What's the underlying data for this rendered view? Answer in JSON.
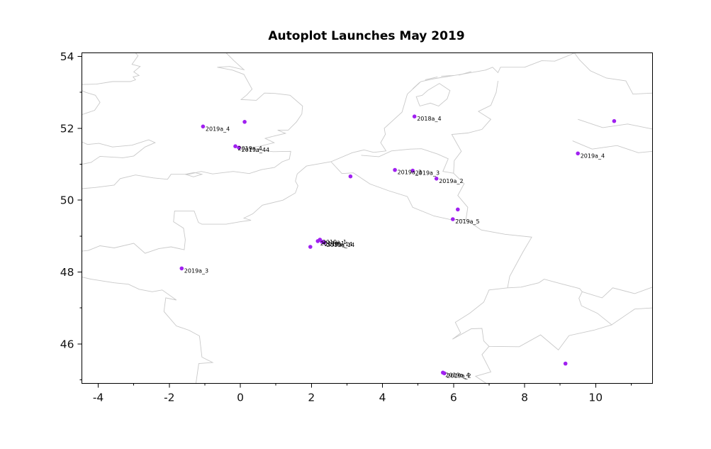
{
  "chart_data": {
    "type": "scatter",
    "title": "Autoplot Launches May 2019",
    "xlabel": "",
    "ylabel": "",
    "xlim": [
      -4.46,
      11.6
    ],
    "ylim": [
      44.9,
      54.1
    ],
    "xticks": [
      -4,
      -2,
      0,
      2,
      4,
      6,
      8,
      10
    ],
    "yticks": [
      46,
      48,
      50,
      52,
      54
    ],
    "xminor": [
      -3,
      -1,
      1,
      3,
      5,
      7,
      9,
      11
    ],
    "yminor": [
      45,
      47,
      49,
      51,
      53
    ],
    "grid": false,
    "legend": false,
    "marker_color": "#a020f0",
    "map_line_color": "#c9c9c9",
    "axis_color": "#000000",
    "points": [
      {
        "x": -1.05,
        "y": 52.05,
        "label": "2019a_4"
      },
      {
        "x": 0.12,
        "y": 52.18,
        "label": ""
      },
      {
        "x": -0.14,
        "y": 51.5,
        "label": "2019a_4"
      },
      {
        "x": -0.04,
        "y": 51.46,
        "label": "2019a_44"
      },
      {
        "x": 4.9,
        "y": 52.33,
        "label": "2018a_4"
      },
      {
        "x": 3.1,
        "y": 50.66,
        "label": ""
      },
      {
        "x": 4.35,
        "y": 50.84,
        "label": "2019a_3"
      },
      {
        "x": 4.85,
        "y": 50.82,
        "label": "2019a_3"
      },
      {
        "x": 5.52,
        "y": 50.6,
        "label": "2019a_2"
      },
      {
        "x": 9.5,
        "y": 51.3,
        "label": "2019a_4"
      },
      {
        "x": 10.52,
        "y": 52.2,
        "label": ""
      },
      {
        "x": 6.12,
        "y": 49.74,
        "label": ""
      },
      {
        "x": 5.98,
        "y": 49.47,
        "label": "2019a_5"
      },
      {
        "x": 1.97,
        "y": 48.7,
        "label": ""
      },
      {
        "x": 2.18,
        "y": 48.86,
        "label": "2017a_1"
      },
      {
        "x": 2.24,
        "y": 48.9,
        "label": "2019a_1"
      },
      {
        "x": 2.3,
        "y": 48.84,
        "label": "2018a_14"
      },
      {
        "x": 2.36,
        "y": 48.82,
        "label": "2019a_14"
      },
      {
        "x": -1.65,
        "y": 48.1,
        "label": "2019a_3"
      },
      {
        "x": 5.7,
        "y": 45.2,
        "label": "2019a_4"
      },
      {
        "x": 5.74,
        "y": 45.18,
        "label": "2019a_2"
      },
      {
        "x": 9.15,
        "y": 45.45,
        "label": ""
      }
    ],
    "map_outlines": [
      [
        [
          -0.4,
          54.1
        ],
        [
          -0.18,
          53.88
        ],
        [
          0.1,
          53.63
        ],
        [
          -0.3,
          53.72
        ],
        [
          -0.65,
          53.7
        ],
        [
          -0.22,
          53.62
        ],
        [
          0.1,
          53.5
        ],
        [
          0.33,
          53.09
        ],
        [
          0.18,
          52.93
        ],
        [
          0.02,
          52.8
        ],
        [
          0.45,
          52.78
        ],
        [
          0.68,
          52.98
        ],
        [
          0.97,
          52.97
        ],
        [
          1.4,
          52.92
        ],
        [
          1.75,
          52.62
        ],
        [
          1.73,
          52.4
        ],
        [
          1.58,
          52.18
        ],
        [
          1.35,
          51.95
        ],
        [
          1.05,
          51.95
        ],
        [
          1.27,
          51.86
        ],
        [
          0.93,
          51.78
        ],
        [
          0.7,
          51.72
        ],
        [
          0.95,
          51.6
        ],
        [
          0.55,
          51.5
        ],
        [
          0.28,
          51.46
        ],
        [
          0.52,
          51.4
        ],
        [
          0.92,
          51.35
        ],
        [
          1.42,
          51.36
        ],
        [
          1.38,
          51.14
        ],
        [
          1.18,
          51.07
        ],
        [
          0.96,
          50.91
        ],
        [
          0.6,
          50.85
        ],
        [
          0.25,
          50.74
        ],
        [
          -0.2,
          50.8
        ],
        [
          -0.78,
          50.73
        ],
        [
          -1.1,
          50.8
        ],
        [
          -1.45,
          50.72
        ],
        [
          -1.95,
          50.72
        ],
        [
          -2.05,
          50.58
        ],
        [
          -2.45,
          50.62
        ],
        [
          -2.95,
          50.7
        ],
        [
          -3.38,
          50.6
        ],
        [
          -3.55,
          50.42
        ],
        [
          -4.1,
          50.35
        ],
        [
          -4.46,
          50.32
        ]
      ],
      [
        [
          -1.55,
          50.72
        ],
        [
          -1.3,
          50.77
        ],
        [
          -1.08,
          50.72
        ],
        [
          -1.32,
          50.65
        ],
        [
          -1.55,
          50.72
        ]
      ],
      [
        [
          -4.46,
          51.0
        ],
        [
          -4.2,
          51.05
        ],
        [
          -3.95,
          51.22
        ],
        [
          -3.3,
          51.18
        ],
        [
          -3.0,
          51.23
        ],
        [
          -2.68,
          51.48
        ],
        [
          -2.4,
          51.6
        ],
        [
          -2.58,
          51.68
        ],
        [
          -3.05,
          51.53
        ],
        [
          -3.6,
          51.48
        ],
        [
          -3.98,
          51.58
        ],
        [
          -4.3,
          51.55
        ],
        [
          -4.46,
          51.62
        ]
      ],
      [
        [
          -4.46,
          52.38
        ],
        [
          -4.1,
          52.5
        ],
        [
          -3.95,
          52.72
        ],
        [
          -4.08,
          52.92
        ],
        [
          -4.35,
          53.0
        ],
        [
          -4.46,
          53.05
        ]
      ],
      [
        [
          -4.46,
          53.22
        ],
        [
          -4.05,
          53.23
        ],
        [
          -3.6,
          53.3
        ],
        [
          -3.1,
          53.3
        ],
        [
          -2.95,
          53.35
        ],
        [
          -3.02,
          53.43
        ],
        [
          -2.85,
          53.47
        ],
        [
          -3.0,
          53.57
        ],
        [
          -2.82,
          53.72
        ],
        [
          -3.05,
          53.78
        ],
        [
          -2.88,
          54.02
        ],
        [
          -2.95,
          54.1
        ]
      ],
      [
        [
          -1.25,
          44.9
        ],
        [
          -1.17,
          45.45
        ],
        [
          -0.78,
          45.48
        ],
        [
          -1.08,
          45.63
        ],
        [
          -1.15,
          46.22
        ],
        [
          -1.45,
          46.38
        ],
        [
          -1.8,
          46.5
        ],
        [
          -2.15,
          46.9
        ],
        [
          -2.1,
          47.28
        ],
        [
          -1.8,
          47.22
        ],
        [
          -2.2,
          47.5
        ],
        [
          -2.48,
          47.45
        ],
        [
          -2.85,
          47.52
        ],
        [
          -3.15,
          47.66
        ],
        [
          -3.55,
          47.7
        ],
        [
          -4.2,
          47.8
        ],
        [
          -4.46,
          47.86
        ]
      ],
      [
        [
          -4.46,
          48.58
        ],
        [
          -4.28,
          48.6
        ],
        [
          -3.95,
          48.73
        ],
        [
          -3.55,
          48.67
        ],
        [
          -3.0,
          48.8
        ],
        [
          -2.68,
          48.52
        ],
        [
          -2.3,
          48.65
        ],
        [
          -1.95,
          48.7
        ],
        [
          -1.58,
          48.62
        ],
        [
          -1.55,
          48.9
        ],
        [
          -1.6,
          49.22
        ],
        [
          -1.88,
          49.4
        ],
        [
          -1.85,
          49.7
        ],
        [
          -1.3,
          49.7
        ],
        [
          -1.18,
          49.38
        ],
        [
          -1.08,
          49.33
        ],
        [
          -0.4,
          49.33
        ],
        [
          0.0,
          49.4
        ],
        [
          0.3,
          49.44
        ],
        [
          0.1,
          49.5
        ],
        [
          0.35,
          49.62
        ],
        [
          0.62,
          49.86
        ],
        [
          1.2,
          50.0
        ],
        [
          1.55,
          50.2
        ],
        [
          1.62,
          50.4
        ],
        [
          1.55,
          50.53
        ],
        [
          1.6,
          50.73
        ],
        [
          1.86,
          50.95
        ],
        [
          2.55,
          51.07
        ],
        [
          3.15,
          51.32
        ],
        [
          3.48,
          51.4
        ],
        [
          3.75,
          51.33
        ],
        [
          4.1,
          51.37
        ],
        [
          3.95,
          51.6
        ],
        [
          4.08,
          51.83
        ],
        [
          4.05,
          52.0
        ],
        [
          4.55,
          52.45
        ],
        [
          4.7,
          52.95
        ],
        [
          5.08,
          53.3
        ],
        [
          5.45,
          53.38
        ],
        [
          6.2,
          53.5
        ],
        [
          6.9,
          53.62
        ],
        [
          7.1,
          53.7
        ],
        [
          7.25,
          53.55
        ],
        [
          7.32,
          53.7
        ],
        [
          8.0,
          53.7
        ],
        [
          8.48,
          53.88
        ],
        [
          8.85,
          53.87
        ],
        [
          9.3,
          54.05
        ],
        [
          9.4,
          54.1
        ]
      ],
      [
        [
          5.05,
          52.62
        ],
        [
          5.35,
          52.7
        ],
        [
          5.58,
          52.62
        ],
        [
          5.82,
          52.82
        ],
        [
          5.9,
          53.05
        ],
        [
          5.6,
          53.25
        ],
        [
          5.28,
          53.06
        ],
        [
          5.12,
          52.92
        ],
        [
          4.95,
          52.88
        ],
        [
          5.05,
          52.62
        ]
      ],
      [
        [
          4.85,
          53.1
        ],
        [
          5.05,
          53.28
        ]
      ],
      [
        [
          5.2,
          53.35
        ],
        [
          5.55,
          53.43
        ]
      ],
      [
        [
          5.65,
          53.45
        ],
        [
          6.0,
          53.47
        ]
      ],
      [
        [
          6.15,
          53.48
        ],
        [
          6.5,
          53.58
        ]
      ],
      [
        [
          2.55,
          51.07
        ],
        [
          2.86,
          50.74
        ],
        [
          3.18,
          50.76
        ],
        [
          3.65,
          50.45
        ],
        [
          4.18,
          50.26
        ],
        [
          4.7,
          50.1
        ],
        [
          4.85,
          49.8
        ],
        [
          5.45,
          49.56
        ],
        [
          5.95,
          49.45
        ],
        [
          6.35,
          49.46
        ],
        [
          6.78,
          49.17
        ],
        [
          7.45,
          49.05
        ],
        [
          8.2,
          48.97
        ],
        [
          7.95,
          48.55
        ],
        [
          7.58,
          47.88
        ],
        [
          7.52,
          47.56
        ]
      ],
      [
        [
          3.4,
          51.25
        ],
        [
          3.9,
          51.21
        ],
        [
          4.25,
          51.37
        ],
        [
          4.78,
          51.42
        ],
        [
          5.1,
          51.43
        ],
        [
          5.56,
          51.28
        ],
        [
          5.85,
          51.15
        ],
        [
          5.7,
          50.8
        ],
        [
          6.0,
          50.75
        ]
      ],
      [
        [
          6.0,
          50.75
        ],
        [
          6.3,
          50.46
        ],
        [
          6.12,
          50.13
        ],
        [
          6.4,
          49.8
        ],
        [
          6.35,
          49.46
        ]
      ],
      [
        [
          6.0,
          50.75
        ],
        [
          6.02,
          51.1
        ],
        [
          6.22,
          51.36
        ],
        [
          6.08,
          51.6
        ],
        [
          5.95,
          51.83
        ],
        [
          6.4,
          51.87
        ],
        [
          6.8,
          51.97
        ],
        [
          7.05,
          52.25
        ],
        [
          6.7,
          52.47
        ],
        [
          7.05,
          52.64
        ],
        [
          7.2,
          53.0
        ],
        [
          7.25,
          53.32
        ]
      ],
      [
        [
          7.52,
          47.56
        ],
        [
          7.0,
          47.5
        ],
        [
          6.85,
          47.16
        ],
        [
          6.45,
          46.85
        ],
        [
          6.05,
          46.6
        ],
        [
          6.2,
          46.3
        ],
        [
          5.97,
          46.13
        ],
        [
          6.5,
          46.42
        ],
        [
          6.8,
          46.43
        ],
        [
          6.85,
          46.08
        ],
        [
          7.0,
          45.93
        ],
        [
          7.85,
          45.92
        ],
        [
          8.45,
          46.25
        ],
        [
          8.95,
          45.83
        ],
        [
          9.25,
          46.23
        ],
        [
          9.95,
          46.38
        ],
        [
          10.45,
          46.53
        ],
        [
          10.05,
          46.85
        ],
        [
          9.6,
          47.06
        ],
        [
          9.53,
          47.27
        ],
        [
          9.62,
          47.45
        ],
        [
          9.55,
          47.54
        ],
        [
          9.0,
          47.68
        ],
        [
          8.55,
          47.8
        ],
        [
          8.4,
          47.7
        ],
        [
          7.9,
          47.58
        ],
        [
          7.52,
          47.56
        ]
      ],
      [
        [
          7.0,
          45.93
        ],
        [
          6.8,
          45.7
        ],
        [
          7.05,
          45.22
        ],
        [
          6.62,
          45.1
        ],
        [
          6.92,
          44.9
        ]
      ],
      [
        [
          9.62,
          47.45
        ],
        [
          10.18,
          47.28
        ],
        [
          10.48,
          47.56
        ],
        [
          11.1,
          47.4
        ],
        [
          11.6,
          47.58
        ]
      ],
      [
        [
          10.45,
          46.53
        ],
        [
          11.1,
          46.97
        ],
        [
          11.6,
          47.0
        ]
      ],
      [
        [
          9.4,
          54.1
        ],
        [
          9.55,
          53.9
        ],
        [
          9.85,
          53.6
        ],
        [
          10.3,
          53.4
        ],
        [
          10.85,
          53.32
        ],
        [
          11.05,
          52.95
        ],
        [
          11.6,
          52.98
        ]
      ],
      [
        [
          9.35,
          51.65
        ],
        [
          9.9,
          51.42
        ],
        [
          10.6,
          51.52
        ],
        [
          11.2,
          51.32
        ],
        [
          11.6,
          51.36
        ]
      ],
      [
        [
          9.5,
          52.25
        ],
        [
          10.2,
          52.02
        ],
        [
          10.9,
          52.12
        ],
        [
          11.6,
          51.98
        ]
      ]
    ]
  }
}
